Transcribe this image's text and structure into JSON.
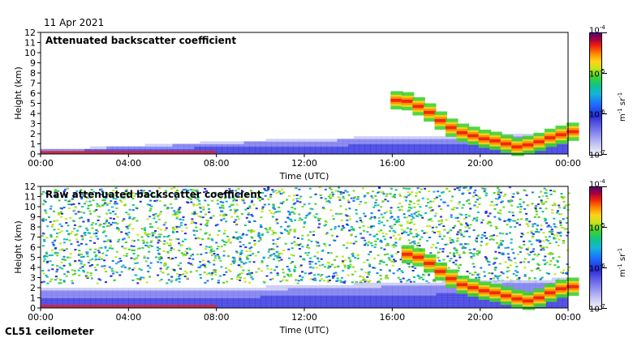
{
  "date": "11 Apr 2021",
  "footer": "CL51 ceilometer",
  "colors": {
    "background": "#ffffff",
    "axis": "#000000",
    "clear_air": "#f6f6ff",
    "low_signal": "#2a2ad8",
    "mid_signal": "#40d12c",
    "high_signal": "#ee1d12",
    "max_signal": "#5a007a"
  },
  "chart_data": [
    {
      "type": "heatmap",
      "title": "Attenuated backscatter coefficient",
      "xlabel": "Time (UTC)",
      "ylabel": "Height (km)",
      "x_ticks": [
        "00:00",
        "04:00",
        "08:00",
        "12:00",
        "16:00",
        "20:00",
        "00:00"
      ],
      "xlim": [
        0,
        24
      ],
      "y_ticks": [
        "0",
        "1",
        "2",
        "3",
        "4",
        "5",
        "6",
        "7",
        "8",
        "9",
        "10",
        "11",
        "12"
      ],
      "ylim": [
        0,
        12
      ],
      "colorbar": {
        "scale": "log",
        "range": [
          1e-07,
          0.0001
        ],
        "ticks": [
          {
            "base": "10",
            "exp": "-4"
          },
          {
            "base": "10",
            "exp": "-5"
          },
          {
            "base": "10",
            "exp": "-6"
          },
          {
            "base": "10",
            "exp": "-7"
          }
        ],
        "unit": {
          "base1": "m",
          "exp1": "-1",
          "base2": "sr",
          "exp2": "-1"
        }
      },
      "features": {
        "boundary_layer_top_km": [
          [
            0,
            0.3
          ],
          [
            4,
            0.7
          ],
          [
            8,
            1.1
          ],
          [
            12,
            1.4
          ],
          [
            16,
            1.6
          ],
          [
            20,
            1.7
          ],
          [
            24,
            2.0
          ]
        ],
        "cloud_layer": [
          [
            16.0,
            5.3
          ],
          [
            16.5,
            5.2
          ],
          [
            17.0,
            4.7
          ],
          [
            17.5,
            4.1
          ],
          [
            18.0,
            3.3
          ],
          [
            18.5,
            2.6
          ],
          [
            19.0,
            2.1
          ],
          [
            19.5,
            1.8
          ],
          [
            20.0,
            1.5
          ],
          [
            20.5,
            1.3
          ],
          [
            21.0,
            1.0
          ],
          [
            21.5,
            0.7
          ],
          [
            22.0,
            0.9
          ],
          [
            22.5,
            1.2
          ],
          [
            23.0,
            1.6
          ],
          [
            23.5,
            1.9
          ],
          [
            24.0,
            2.2
          ]
        ],
        "has_noise_background": false
      }
    },
    {
      "type": "heatmap",
      "title": "Raw attenuated backscatter coefficient",
      "xlabel": "Time (UTC)",
      "ylabel": "Height (km)",
      "x_ticks": [
        "00:00",
        "04:00",
        "08:00",
        "12:00",
        "16:00",
        "20:00",
        "00:00"
      ],
      "xlim": [
        0,
        24
      ],
      "y_ticks": [
        "0",
        "1",
        "2",
        "3",
        "4",
        "5",
        "6",
        "7",
        "8",
        "9",
        "10",
        "11",
        "12"
      ],
      "ylim": [
        0,
        12
      ],
      "colorbar": {
        "scale": "log",
        "range": [
          1e-07,
          0.0001
        ],
        "ticks": [
          {
            "base": "10",
            "exp": "-4"
          },
          {
            "base": "10",
            "exp": "-5"
          },
          {
            "base": "10",
            "exp": "-6"
          },
          {
            "base": "10",
            "exp": "-7"
          }
        ],
        "unit": {
          "base1": "m",
          "exp1": "-1",
          "base2": "sr",
          "exp2": "-1"
        }
      },
      "features": {
        "boundary_layer_top_km": [
          [
            0,
            1.8
          ],
          [
            4,
            1.8
          ],
          [
            8,
            1.9
          ],
          [
            12,
            2.1
          ],
          [
            16,
            2.4
          ],
          [
            20,
            2.6
          ],
          [
            24,
            2.8
          ]
        ],
        "cloud_layer": [
          [
            16.5,
            5.3
          ],
          [
            17.0,
            5.0
          ],
          [
            17.5,
            4.4
          ],
          [
            18.0,
            3.6
          ],
          [
            18.5,
            2.9
          ],
          [
            19.0,
            2.3
          ],
          [
            19.5,
            2.0
          ],
          [
            20.0,
            1.7
          ],
          [
            20.5,
            1.5
          ],
          [
            21.0,
            1.2
          ],
          [
            21.5,
            0.9
          ],
          [
            22.0,
            0.7
          ],
          [
            22.5,
            1.0
          ],
          [
            23.0,
            1.5
          ],
          [
            23.5,
            1.9
          ],
          [
            24.0,
            2.1
          ]
        ],
        "has_noise_background": true
      }
    }
  ]
}
